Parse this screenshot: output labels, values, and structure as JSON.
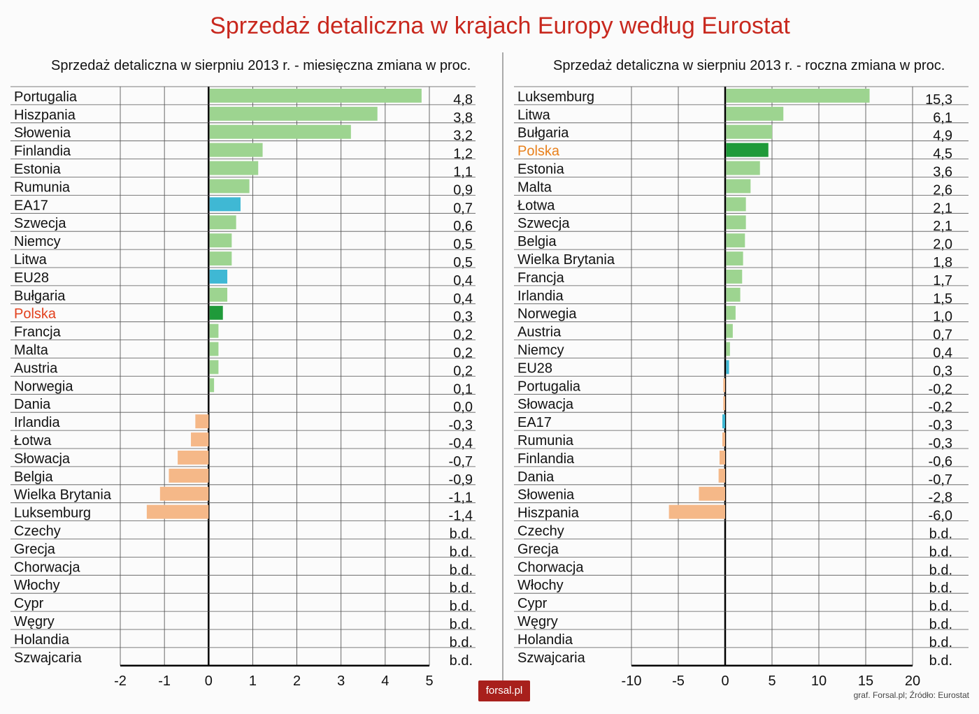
{
  "title": "Sprzedaż detaliczna w krajach Europy według Eurostat",
  "logo": "forsal.pl",
  "source": "graf. Forsal.pl; Źródło: Eurostat",
  "colors": {
    "positive": "#9dd490",
    "aggregate": "#3fb8d4",
    "poland": "#1f9a3a",
    "negative": "#f5b888",
    "title": "#c8281e",
    "poland_label_left": "#e2401c",
    "poland_label_right": "#e8801c"
  },
  "chart_data": [
    {
      "type": "bar",
      "orientation": "horizontal",
      "title": "Sprzedaż detaliczna w sierpniu 2013 r. - miesięczna zmiana w proc.",
      "xlim": [
        -2,
        5
      ],
      "xticks": [
        "-2",
        "-1",
        "0",
        "1",
        "2",
        "3",
        "4",
        "5"
      ],
      "grid": true,
      "categories": [
        "Portugalia",
        "Hiszpania",
        "Słowenia",
        "Finlandia",
        "Estonia",
        "Rumunia",
        "EA17",
        "Szwecja",
        "Niemcy",
        "Litwa",
        "EU28",
        "Bułgaria",
        "Polska",
        "Francja",
        "Malta",
        "Austria",
        "Norwegia",
        "Dania",
        "Irlandia",
        "Łotwa",
        "Słowacja",
        "Belgia",
        "Wielka Brytania",
        "Luksemburg",
        "Czechy",
        "Grecja",
        "Chorwacja",
        "Włochy",
        "Cypr",
        "Węgry",
        "Holandia",
        "Szwajcaria"
      ],
      "values": [
        4.8,
        3.8,
        3.2,
        1.2,
        1.1,
        0.9,
        0.7,
        0.6,
        0.5,
        0.5,
        0.4,
        0.4,
        0.3,
        0.2,
        0.2,
        0.2,
        0.1,
        0.0,
        -0.3,
        -0.4,
        -0.7,
        -0.9,
        -1.1,
        -1.4,
        null,
        null,
        null,
        null,
        null,
        null,
        null,
        null
      ],
      "value_labels": [
        "4,8",
        "3,8",
        "3,2",
        "1,2",
        "1,1",
        "0,9",
        "0,7",
        "0,6",
        "0,5",
        "0,5",
        "0,4",
        "0,4",
        "0,3",
        "0,2",
        "0,2",
        "0,2",
        "0,1",
        "0,0",
        "-0,3",
        "-0,4",
        "-0,7",
        "-0,9",
        "-1,1",
        "-1,4",
        "b.d.",
        "b.d.",
        "b.d.",
        "b.d.",
        "b.d.",
        "b.d.",
        "b.d.",
        "b.d."
      ]
    },
    {
      "type": "bar",
      "orientation": "horizontal",
      "title": "Sprzedaż detaliczna w sierpniu 2013 r. - roczna zmiana w proc.",
      "xlim": [
        -10,
        20
      ],
      "xticks": [
        "-10",
        "-5",
        "0",
        "5",
        "10",
        "15",
        "20"
      ],
      "grid": true,
      "categories": [
        "Luksemburg",
        "Litwa",
        "Bułgaria",
        "Polska",
        "Estonia",
        "Malta",
        "Łotwa",
        "Szwecja",
        "Belgia",
        "Wielka Brytania",
        "Francja",
        "Irlandia",
        "Norwegia",
        "Austria",
        "Niemcy",
        "EU28",
        "Portugalia",
        "Słowacja",
        "EA17",
        "Rumunia",
        "Finlandia",
        "Dania",
        "Słowenia",
        "Hiszpania",
        "Czechy",
        "Grecja",
        "Chorwacja",
        "Włochy",
        "Cypr",
        "Węgry",
        "Holandia",
        "Szwajcaria"
      ],
      "values": [
        15.3,
        6.1,
        4.9,
        4.5,
        3.6,
        2.6,
        2.1,
        2.1,
        2.0,
        1.8,
        1.7,
        1.5,
        1.0,
        0.7,
        0.4,
        0.3,
        -0.2,
        -0.2,
        -0.3,
        -0.3,
        -0.6,
        -0.7,
        -2.8,
        -6.0,
        null,
        null,
        null,
        null,
        null,
        null,
        null,
        null
      ],
      "value_labels": [
        "15,3",
        "6,1",
        "4,9",
        "4,5",
        "3,6",
        "2,6",
        "2,1",
        "2,1",
        "2,0",
        "1,8",
        "1,7",
        "1,5",
        "1,0",
        "0,7",
        "0,4",
        "0,3",
        "-0,2",
        "-0,2",
        "-0,3",
        "-0,3",
        "-0,6",
        "-0,7",
        "-2,8",
        "-6,0",
        "b.d.",
        "b.d.",
        "b.d.",
        "b.d.",
        "b.d.",
        "b.d.",
        "b.d.",
        "b.d."
      ]
    }
  ]
}
